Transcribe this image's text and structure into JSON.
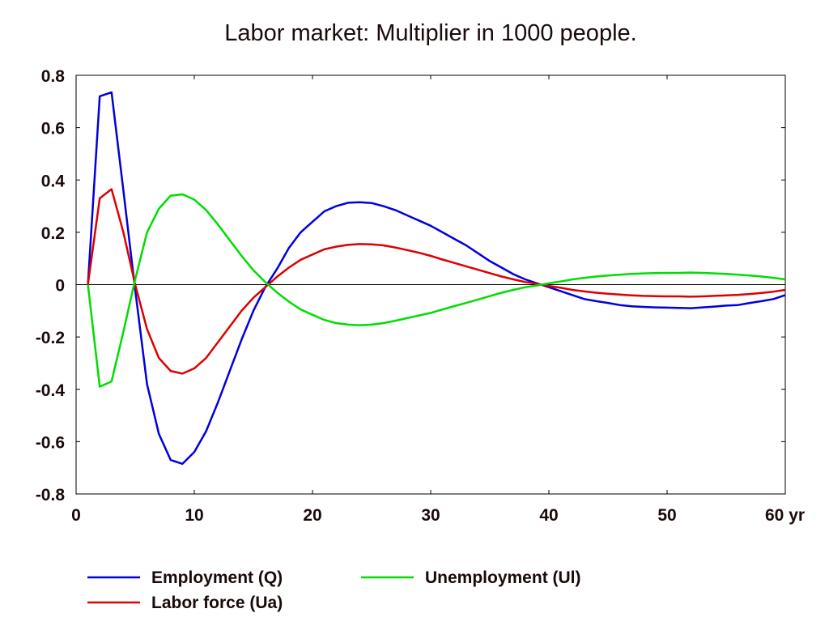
{
  "chart_data": {
    "type": "line",
    "title": "Labor market: Multiplier in 1000 people.",
    "xlabel": "",
    "ylabel": "",
    "x_unit_label": "yr",
    "xlim": [
      0,
      60
    ],
    "ylim": [
      -0.8,
      0.8
    ],
    "x_ticks": [
      0,
      10,
      20,
      30,
      40,
      50,
      60
    ],
    "x_tick_labels": [
      "0",
      "10",
      "20",
      "30",
      "40",
      "50",
      "60"
    ],
    "y_ticks": [
      0.8,
      0.6,
      0.4,
      0.2,
      0,
      -0.2,
      -0.4,
      -0.6,
      -0.8
    ],
    "y_tick_labels": [
      "0.8",
      "0.6",
      "0.4",
      "0.2",
      "0",
      "-0.2",
      "-0.4",
      "-0.6",
      "-0.8"
    ],
    "grid": false,
    "zero_line": true,
    "legend_position": "bottom",
    "series": [
      {
        "name": "Employment (Q)",
        "color": "#0000dd",
        "points": [
          [
            1,
            0
          ],
          [
            2,
            0.72
          ],
          [
            3,
            0.735
          ],
          [
            4,
            0.36
          ],
          [
            5,
            -0.02
          ],
          [
            6,
            -0.38
          ],
          [
            7,
            -0.57
          ],
          [
            8,
            -0.67
          ],
          [
            9,
            -0.685
          ],
          [
            10,
            -0.64
          ],
          [
            11,
            -0.56
          ],
          [
            12,
            -0.45
          ],
          [
            13,
            -0.33
          ],
          [
            14,
            -0.21
          ],
          [
            15,
            -0.1
          ],
          [
            16,
            -0.01
          ],
          [
            17,
            0.06
          ],
          [
            18,
            0.14
          ],
          [
            19,
            0.2
          ],
          [
            20,
            0.24
          ],
          [
            21,
            0.28
          ],
          [
            22,
            0.3
          ],
          [
            23,
            0.313
          ],
          [
            24,
            0.315
          ],
          [
            25,
            0.312
          ],
          [
            26,
            0.3
          ],
          [
            27,
            0.285
          ],
          [
            28,
            0.265
          ],
          [
            29,
            0.245
          ],
          [
            30,
            0.225
          ],
          [
            31,
            0.2
          ],
          [
            32,
            0.175
          ],
          [
            33,
            0.15
          ],
          [
            34,
            0.12
          ],
          [
            35,
            0.09
          ],
          [
            36,
            0.065
          ],
          [
            37,
            0.04
          ],
          [
            38,
            0.02
          ],
          [
            39,
            0.005
          ],
          [
            40,
            -0.01
          ],
          [
            41,
            -0.025
          ],
          [
            42,
            -0.04
          ],
          [
            43,
            -0.055
          ],
          [
            44,
            -0.063
          ],
          [
            45,
            -0.07
          ],
          [
            46,
            -0.078
          ],
          [
            47,
            -0.083
          ],
          [
            48,
            -0.085
          ],
          [
            49,
            -0.087
          ],
          [
            50,
            -0.088
          ],
          [
            51,
            -0.089
          ],
          [
            52,
            -0.09
          ],
          [
            53,
            -0.087
          ],
          [
            54,
            -0.084
          ],
          [
            55,
            -0.08
          ],
          [
            56,
            -0.078
          ],
          [
            57,
            -0.07
          ],
          [
            58,
            -0.063
          ],
          [
            59,
            -0.055
          ],
          [
            60,
            -0.04
          ]
        ]
      },
      {
        "name": "Labor force (Ua)",
        "color": "#dd0000",
        "points": [
          [
            1,
            0
          ],
          [
            2,
            0.33
          ],
          [
            3,
            0.365
          ],
          [
            4,
            0.2
          ],
          [
            5,
            0
          ],
          [
            6,
            -0.17
          ],
          [
            7,
            -0.28
          ],
          [
            8,
            -0.33
          ],
          [
            9,
            -0.34
          ],
          [
            10,
            -0.32
          ],
          [
            11,
            -0.28
          ],
          [
            12,
            -0.22
          ],
          [
            13,
            -0.16
          ],
          [
            14,
            -0.1
          ],
          [
            15,
            -0.05
          ],
          [
            16,
            -0.01
          ],
          [
            17,
            0.03
          ],
          [
            18,
            0.065
          ],
          [
            19,
            0.095
          ],
          [
            20,
            0.115
          ],
          [
            21,
            0.135
          ],
          [
            22,
            0.145
          ],
          [
            23,
            0.152
          ],
          [
            24,
            0.155
          ],
          [
            25,
            0.154
          ],
          [
            26,
            0.15
          ],
          [
            27,
            0.142
          ],
          [
            28,
            0.132
          ],
          [
            29,
            0.122
          ],
          [
            30,
            0.11
          ],
          [
            31,
            0.096
          ],
          [
            32,
            0.083
          ],
          [
            33,
            0.07
          ],
          [
            34,
            0.057
          ],
          [
            35,
            0.044
          ],
          [
            36,
            0.031
          ],
          [
            37,
            0.02
          ],
          [
            38,
            0.01
          ],
          [
            39,
            0.003
          ],
          [
            40,
            -0.005
          ],
          [
            41,
            -0.012
          ],
          [
            42,
            -0.02
          ],
          [
            43,
            -0.026
          ],
          [
            44,
            -0.031
          ],
          [
            45,
            -0.035
          ],
          [
            46,
            -0.038
          ],
          [
            47,
            -0.041
          ],
          [
            48,
            -0.043
          ],
          [
            49,
            -0.044
          ],
          [
            50,
            -0.045
          ],
          [
            51,
            -0.045
          ],
          [
            52,
            -0.046
          ],
          [
            53,
            -0.045
          ],
          [
            54,
            -0.043
          ],
          [
            55,
            -0.041
          ],
          [
            56,
            -0.039
          ],
          [
            57,
            -0.036
          ],
          [
            58,
            -0.032
          ],
          [
            59,
            -0.027
          ],
          [
            60,
            -0.02
          ]
        ]
      },
      {
        "name": "Unemployment (Ul)",
        "color": "#00dd00",
        "points": [
          [
            1,
            0
          ],
          [
            2,
            -0.39
          ],
          [
            3,
            -0.37
          ],
          [
            4,
            -0.18
          ],
          [
            5,
            0.02
          ],
          [
            6,
            0.2
          ],
          [
            7,
            0.29
          ],
          [
            8,
            0.34
          ],
          [
            9,
            0.345
          ],
          [
            10,
            0.325
          ],
          [
            11,
            0.285
          ],
          [
            12,
            0.23
          ],
          [
            13,
            0.17
          ],
          [
            14,
            0.11
          ],
          [
            15,
            0.055
          ],
          [
            16,
            0.01
          ],
          [
            17,
            -0.03
          ],
          [
            18,
            -0.065
          ],
          [
            19,
            -0.095
          ],
          [
            20,
            -0.115
          ],
          [
            21,
            -0.135
          ],
          [
            22,
            -0.147
          ],
          [
            23,
            -0.153
          ],
          [
            24,
            -0.155
          ],
          [
            25,
            -0.153
          ],
          [
            26,
            -0.147
          ],
          [
            27,
            -0.138
          ],
          [
            28,
            -0.128
          ],
          [
            29,
            -0.118
          ],
          [
            30,
            -0.108
          ],
          [
            31,
            -0.095
          ],
          [
            32,
            -0.082
          ],
          [
            33,
            -0.07
          ],
          [
            34,
            -0.057
          ],
          [
            35,
            -0.044
          ],
          [
            36,
            -0.031
          ],
          [
            37,
            -0.02
          ],
          [
            38,
            -0.01
          ],
          [
            39,
            -0.003
          ],
          [
            40,
            0.005
          ],
          [
            41,
            0.012
          ],
          [
            42,
            0.02
          ],
          [
            43,
            0.026
          ],
          [
            44,
            0.031
          ],
          [
            45,
            0.035
          ],
          [
            46,
            0.038
          ],
          [
            47,
            0.041
          ],
          [
            48,
            0.043
          ],
          [
            49,
            0.044
          ],
          [
            50,
            0.045
          ],
          [
            51,
            0.045
          ],
          [
            52,
            0.046
          ],
          [
            53,
            0.045
          ],
          [
            54,
            0.043
          ],
          [
            55,
            0.041
          ],
          [
            56,
            0.038
          ],
          [
            57,
            0.035
          ],
          [
            58,
            0.031
          ],
          [
            59,
            0.026
          ],
          [
            60,
            0.02
          ]
        ]
      }
    ]
  }
}
